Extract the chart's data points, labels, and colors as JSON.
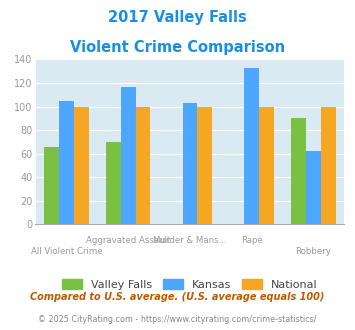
{
  "title_line1": "2017 Valley Falls",
  "title_line2": "Violent Crime Comparison",
  "categories": [
    "All Violent Crime",
    "Aggravated Assault",
    "Murder & Mans...",
    "Rape",
    "Robbery"
  ],
  "series": {
    "Valley Falls": [
      66,
      70,
      0,
      0,
      90
    ],
    "Kansas": [
      105,
      117,
      103,
      133,
      62
    ],
    "National": [
      100,
      100,
      100,
      100,
      100
    ]
  },
  "colors": {
    "Valley Falls": "#7ac143",
    "Kansas": "#4da6ff",
    "National": "#f5a623"
  },
  "ylim": [
    0,
    140
  ],
  "yticks": [
    0,
    20,
    40,
    60,
    80,
    100,
    120,
    140
  ],
  "plot_bg": "#daeaf3",
  "title_color": "#1a8fe0",
  "tick_color": "#999999",
  "legend_text_color": "#444444",
  "footnote1": "Compared to U.S. average. (U.S. average equals 100)",
  "footnote2": "© 2025 CityRating.com - https://www.cityrating.com/crime-statistics/",
  "footnote1_color": "#c05a00",
  "footnote2_color": "#888888",
  "footnote2_link_color": "#4da6ff"
}
